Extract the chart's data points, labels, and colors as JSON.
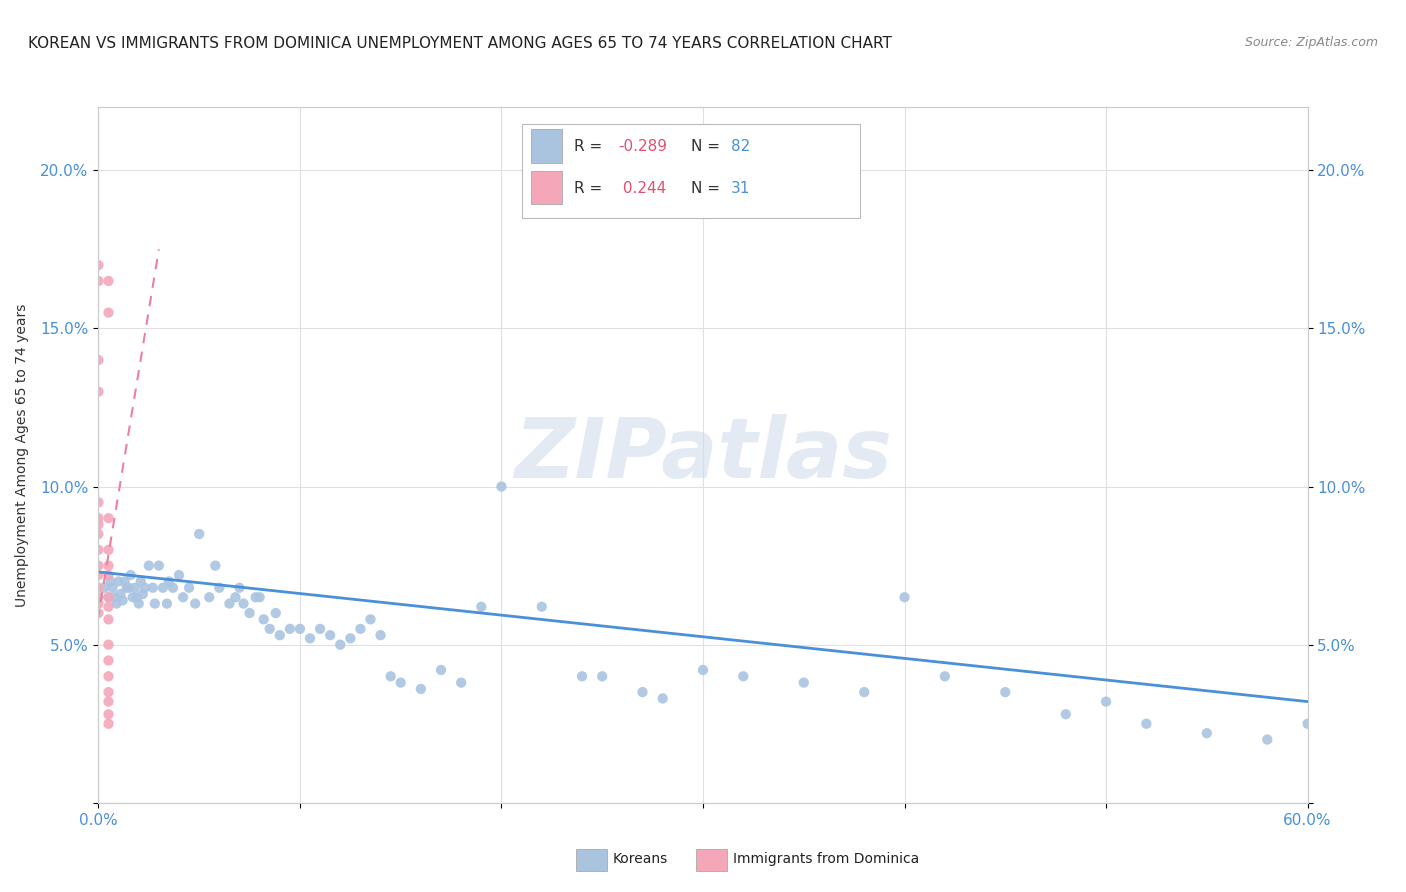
{
  "title": "KOREAN VS IMMIGRANTS FROM DOMINICA UNEMPLOYMENT AMONG AGES 65 TO 74 YEARS CORRELATION CHART",
  "source": "Source: ZipAtlas.com",
  "ylabel": "Unemployment Among Ages 65 to 74 years",
  "xlim": [
    0.0,
    0.6
  ],
  "ylim": [
    0.0,
    0.22
  ],
  "xticks": [
    0.0,
    0.1,
    0.2,
    0.3,
    0.4,
    0.5,
    0.6
  ],
  "yticks": [
    0.0,
    0.05,
    0.1,
    0.15,
    0.2
  ],
  "ytick_labels": [
    "",
    "5.0%",
    "10.0%",
    "15.0%",
    "20.0%"
  ],
  "korean_color": "#aac4e0",
  "dominica_color": "#f4a7b9",
  "korean_line_color": "#4a90d9",
  "dominica_line_color": "#e8829e",
  "watermark": "ZIPatlas",
  "legend_r_korean": "-0.289",
  "legend_n_korean": "82",
  "legend_r_dominica": "0.244",
  "legend_n_dominica": "31",
  "korean_x": [
    0.003,
    0.005,
    0.006,
    0.007,
    0.008,
    0.009,
    0.01,
    0.011,
    0.012,
    0.013,
    0.014,
    0.015,
    0.016,
    0.017,
    0.018,
    0.019,
    0.02,
    0.021,
    0.022,
    0.023,
    0.025,
    0.027,
    0.028,
    0.03,
    0.032,
    0.034,
    0.035,
    0.037,
    0.04,
    0.042,
    0.045,
    0.048,
    0.05,
    0.055,
    0.058,
    0.06,
    0.065,
    0.068,
    0.07,
    0.072,
    0.075,
    0.078,
    0.08,
    0.082,
    0.085,
    0.088,
    0.09,
    0.095,
    0.1,
    0.105,
    0.11,
    0.115,
    0.12,
    0.125,
    0.13,
    0.135,
    0.14,
    0.145,
    0.15,
    0.16,
    0.17,
    0.18,
    0.19,
    0.2,
    0.22,
    0.24,
    0.25,
    0.27,
    0.28,
    0.3,
    0.32,
    0.35,
    0.38,
    0.4,
    0.42,
    0.45,
    0.48,
    0.5,
    0.52,
    0.55,
    0.58,
    0.6
  ],
  "korean_y": [
    0.068,
    0.065,
    0.07,
    0.068,
    0.065,
    0.063,
    0.07,
    0.066,
    0.064,
    0.07,
    0.068,
    0.068,
    0.072,
    0.065,
    0.068,
    0.065,
    0.063,
    0.07,
    0.066,
    0.068,
    0.075,
    0.068,
    0.063,
    0.075,
    0.068,
    0.063,
    0.07,
    0.068,
    0.072,
    0.065,
    0.068,
    0.063,
    0.085,
    0.065,
    0.075,
    0.068,
    0.063,
    0.065,
    0.068,
    0.063,
    0.06,
    0.065,
    0.065,
    0.058,
    0.055,
    0.06,
    0.053,
    0.055,
    0.055,
    0.052,
    0.055,
    0.053,
    0.05,
    0.052,
    0.055,
    0.058,
    0.053,
    0.04,
    0.038,
    0.036,
    0.042,
    0.038,
    0.062,
    0.1,
    0.062,
    0.04,
    0.04,
    0.035,
    0.033,
    0.042,
    0.04,
    0.038,
    0.035,
    0.065,
    0.04,
    0.035,
    0.028,
    0.032,
    0.025,
    0.022,
    0.02,
    0.025
  ],
  "dominica_x": [
    0.0,
    0.0,
    0.0,
    0.0,
    0.0,
    0.0,
    0.0,
    0.0,
    0.0,
    0.0,
    0.0,
    0.0,
    0.0,
    0.0,
    0.0,
    0.005,
    0.005,
    0.005,
    0.005,
    0.005,
    0.005,
    0.005,
    0.005,
    0.005,
    0.005,
    0.005,
    0.005,
    0.005,
    0.005,
    0.005,
    0.005
  ],
  "dominica_y": [
    0.17,
    0.165,
    0.14,
    0.13,
    0.095,
    0.09,
    0.088,
    0.085,
    0.08,
    0.075,
    0.072,
    0.068,
    0.065,
    0.063,
    0.06,
    0.165,
    0.155,
    0.09,
    0.08,
    0.075,
    0.072,
    0.065,
    0.062,
    0.058,
    0.05,
    0.045,
    0.04,
    0.035,
    0.032,
    0.028,
    0.025
  ],
  "korean_trend_x": [
    0.0,
    0.6
  ],
  "korean_trend_y": [
    0.073,
    0.032
  ],
  "dominica_trend_x": [
    -0.005,
    0.03
  ],
  "dominica_trend_y": [
    0.04,
    0.175
  ],
  "bg_color": "#ffffff",
  "grid_color": "#e0e0e0"
}
